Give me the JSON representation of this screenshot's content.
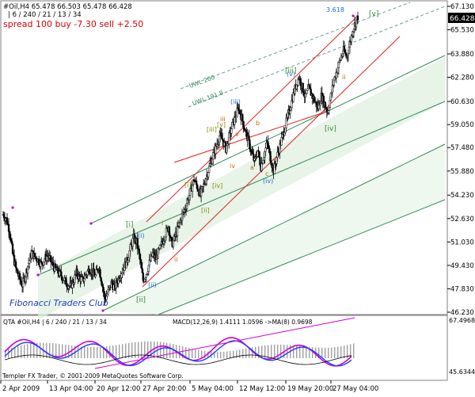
{
  "header": {
    "line1": "#Oil,H4  65.478 66.503 65.478 66.428",
    "line2": "| 6 / 240 / 21 / 13 / 34",
    "spread": "spread 100 buy -7.30 sell +2.50"
  },
  "branding": {
    "club": "Fibonacci Traders Club",
    "copyright": "Templer FX Trader, © 2001-2009 MetaQuotes Software Corp."
  },
  "price_axis": {
    "ticks": [
      "67.130",
      "65.530",
      "63.880",
      "62.280",
      "60.630",
      "59.050",
      "57.480",
      "55.880",
      "54.230",
      "52.630",
      "51.030",
      "49.430",
      "47.830",
      "46.230"
    ],
    "current_price": "66.428"
  },
  "indicator": {
    "label": "QTA #Oil,H4 | 6 / 240 / 21 / 13 / 34",
    "macd_label": "MACD(12,26,9) 1.4111 1.0596  ->MA(8) 0.9698",
    "ticks": [
      "67.4968",
      "45.6344"
    ]
  },
  "time_axis": {
    "ticks": [
      "2 Apr 2009",
      "13 Apr 04:00",
      "20 Apr 12:00",
      "27 Apr 20:00",
      "5 May 04:00",
      "12 May 12:00",
      "19 May 20:00",
      "27 May 04:00"
    ]
  },
  "annotations": {
    "fib": "3.618",
    "uwl200": "UWL 200",
    "uwl1918": "UWL 191.8",
    "waves_green": [
      "[i]",
      "[ii]",
      "[iii]",
      "[iv]",
      "[v]"
    ],
    "waves_blue": [
      "(i)",
      "(ii)",
      "(iii)",
      "(iv)",
      "(v)"
    ],
    "waves_orange": [
      "i",
      "ii",
      "iii",
      "iv",
      "v",
      "a",
      "b",
      "c",
      "ii"
    ]
  },
  "colors": {
    "candle": "#000000",
    "channel_green": "#2e8b57",
    "channel_fill": "#dff0df",
    "trend_red": "#e02020",
    "upper_dashed": "#5f9ea0",
    "wave_blue": "#1e6ad8",
    "wave_green": "#2e8b2e",
    "wave_olive": "#8b8b00",
    "wave_orange": "#c86400",
    "indicator_magenta": "#d000d0",
    "indicator_blue": "#1e3cff"
  },
  "chart_data": {
    "type": "candlestick",
    "symbol": "#Oil",
    "timeframe": "H4",
    "y_range": [
      46.23,
      67.13
    ],
    "x_categories": [
      "2 Apr 2009",
      "13 Apr 04:00",
      "20 Apr 12:00",
      "27 Apr 20:00",
      "5 May 04:00",
      "12 May 12:00",
      "19 May 20:00",
      "27 May 04:00"
    ],
    "close_path": [
      [
        0,
        52.9
      ],
      [
        4,
        52.6
      ],
      [
        8,
        51.8
      ],
      [
        12,
        50.2
      ],
      [
        16,
        49.2
      ],
      [
        20,
        48.6
      ],
      [
        24,
        48.1
      ],
      [
        28,
        48.8
      ],
      [
        32,
        49.6
      ],
      [
        36,
        50.3
      ],
      [
        40,
        50.0
      ],
      [
        44,
        49.8
      ],
      [
        48,
        49.5
      ],
      [
        52,
        49.9
      ],
      [
        56,
        50.1
      ],
      [
        60,
        49.7
      ],
      [
        64,
        49.3
      ],
      [
        68,
        49.0
      ],
      [
        72,
        48.8
      ],
      [
        76,
        48.5
      ],
      [
        80,
        48.2
      ],
      [
        84,
        48.0
      ],
      [
        88,
        48.3
      ],
      [
        92,
        48.9
      ],
      [
        96,
        48.6
      ],
      [
        100,
        48.4
      ],
      [
        104,
        48.8
      ],
      [
        108,
        49.2
      ],
      [
        112,
        49.0
      ],
      [
        116,
        48.7
      ],
      [
        120,
        49.4
      ],
      [
        124,
        48.3
      ],
      [
        128,
        47.1
      ],
      [
        132,
        47.6
      ],
      [
        136,
        48.2
      ],
      [
        140,
        47.9
      ],
      [
        144,
        48.4
      ],
      [
        148,
        48.9
      ],
      [
        152,
        49.3
      ],
      [
        156,
        49.8
      ],
      [
        160,
        50.6
      ],
      [
        164,
        51.3
      ],
      [
        168,
        51.0
      ],
      [
        172,
        49.8
      ],
      [
        176,
        48.4
      ],
      [
        180,
        48.9
      ],
      [
        184,
        49.6
      ],
      [
        188,
        50.2
      ],
      [
        192,
        49.9
      ],
      [
        196,
        50.4
      ],
      [
        200,
        51.0
      ],
      [
        204,
        51.6
      ],
      [
        208,
        52.1
      ],
      [
        212,
        50.8
      ],
      [
        216,
        51.4
      ],
      [
        220,
        52.0
      ],
      [
        224,
        52.7
      ],
      [
        228,
        53.2
      ],
      [
        232,
        53.9
      ],
      [
        236,
        54.6
      ],
      [
        240,
        55.3
      ],
      [
        244,
        54.8
      ],
      [
        248,
        54.2
      ],
      [
        252,
        54.9
      ],
      [
        256,
        55.6
      ],
      [
        260,
        56.3
      ],
      [
        264,
        57.0
      ],
      [
        268,
        57.6
      ],
      [
        272,
        58.3
      ],
      [
        276,
        58.0
      ],
      [
        280,
        57.4
      ],
      [
        284,
        58.2
      ],
      [
        288,
        59.0
      ],
      [
        292,
        59.6
      ],
      [
        296,
        60.2
      ],
      [
        300,
        59.5
      ],
      [
        304,
        58.7
      ],
      [
        308,
        58.0
      ],
      [
        312,
        57.2
      ],
      [
        316,
        56.5
      ],
      [
        320,
        57.3
      ],
      [
        324,
        56.2
      ],
      [
        328,
        57.0
      ],
      [
        332,
        57.8
      ],
      [
        336,
        56.8
      ],
      [
        340,
        55.9
      ],
      [
        344,
        56.8
      ],
      [
        348,
        57.6
      ],
      [
        352,
        58.4
      ],
      [
        356,
        59.2
      ],
      [
        360,
        60.0
      ],
      [
        364,
        60.9
      ],
      [
        368,
        61.7
      ],
      [
        372,
        62.3
      ],
      [
        376,
        61.6
      ],
      [
        380,
        60.9
      ],
      [
        384,
        61.5
      ],
      [
        388,
        61.1
      ],
      [
        392,
        60.6
      ],
      [
        396,
        60.2
      ],
      [
        400,
        61.0
      ],
      [
        404,
        60.5
      ],
      [
        408,
        59.9
      ],
      [
        412,
        61.0
      ],
      [
        416,
        62.1
      ],
      [
        420,
        62.8
      ],
      [
        424,
        63.5
      ],
      [
        428,
        64.1
      ],
      [
        432,
        63.7
      ],
      [
        436,
        64.6
      ],
      [
        440,
        65.6
      ],
      [
        446,
        66.43
      ]
    ]
  }
}
